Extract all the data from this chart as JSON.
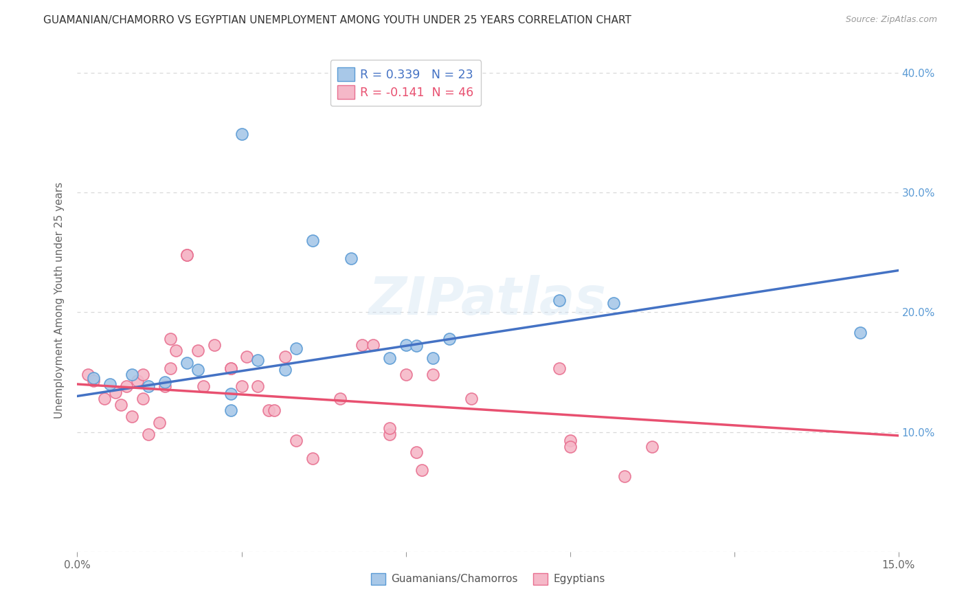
{
  "title": "GUAMANIAN/CHAMORRO VS EGYPTIAN UNEMPLOYMENT AMONG YOUTH UNDER 25 YEARS CORRELATION CHART",
  "source": "Source: ZipAtlas.com",
  "ylabel": "Unemployment Among Youth under 25 years",
  "xlim": [
    0.0,
    0.15
  ],
  "ylim": [
    0.0,
    0.42
  ],
  "xtick_positions": [
    0.0,
    0.03,
    0.06,
    0.09,
    0.12,
    0.15
  ],
  "xtick_labels": [
    "0.0%",
    "",
    "",
    "",
    "",
    "15.0%"
  ],
  "yticks_right": [
    0.1,
    0.2,
    0.3,
    0.4
  ],
  "ytick_labels_right": [
    "10.0%",
    "20.0%",
    "30.0%",
    "40.0%"
  ],
  "legend_blue_label": "Guamanians/Chamorros",
  "legend_pink_label": "Egyptians",
  "blue_fill_color": "#a8c8e8",
  "blue_edge_color": "#5b9bd5",
  "pink_fill_color": "#f5b8c8",
  "pink_edge_color": "#e87090",
  "blue_line_color": "#4472c4",
  "pink_line_color": "#e85070",
  "blue_scatter": [
    [
      0.003,
      0.145
    ],
    [
      0.006,
      0.14
    ],
    [
      0.01,
      0.148
    ],
    [
      0.013,
      0.138
    ],
    [
      0.016,
      0.142
    ],
    [
      0.02,
      0.158
    ],
    [
      0.022,
      0.152
    ],
    [
      0.028,
      0.132
    ],
    [
      0.028,
      0.118
    ],
    [
      0.03,
      0.349
    ],
    [
      0.033,
      0.16
    ],
    [
      0.038,
      0.152
    ],
    [
      0.04,
      0.17
    ],
    [
      0.043,
      0.26
    ],
    [
      0.05,
      0.245
    ],
    [
      0.057,
      0.162
    ],
    [
      0.06,
      0.173
    ],
    [
      0.062,
      0.172
    ],
    [
      0.065,
      0.162
    ],
    [
      0.068,
      0.178
    ],
    [
      0.088,
      0.21
    ],
    [
      0.098,
      0.208
    ],
    [
      0.143,
      0.183
    ]
  ],
  "pink_scatter": [
    [
      0.002,
      0.148
    ],
    [
      0.003,
      0.143
    ],
    [
      0.005,
      0.128
    ],
    [
      0.007,
      0.133
    ],
    [
      0.008,
      0.123
    ],
    [
      0.009,
      0.138
    ],
    [
      0.01,
      0.113
    ],
    [
      0.011,
      0.143
    ],
    [
      0.012,
      0.148
    ],
    [
      0.012,
      0.128
    ],
    [
      0.013,
      0.098
    ],
    [
      0.015,
      0.108
    ],
    [
      0.016,
      0.138
    ],
    [
      0.017,
      0.153
    ],
    [
      0.017,
      0.178
    ],
    [
      0.018,
      0.168
    ],
    [
      0.02,
      0.248
    ],
    [
      0.02,
      0.248
    ],
    [
      0.022,
      0.168
    ],
    [
      0.023,
      0.138
    ],
    [
      0.025,
      0.173
    ],
    [
      0.028,
      0.153
    ],
    [
      0.028,
      0.153
    ],
    [
      0.03,
      0.138
    ],
    [
      0.031,
      0.163
    ],
    [
      0.033,
      0.138
    ],
    [
      0.035,
      0.118
    ],
    [
      0.036,
      0.118
    ],
    [
      0.038,
      0.163
    ],
    [
      0.04,
      0.093
    ],
    [
      0.043,
      0.078
    ],
    [
      0.048,
      0.128
    ],
    [
      0.052,
      0.173
    ],
    [
      0.054,
      0.173
    ],
    [
      0.057,
      0.098
    ],
    [
      0.057,
      0.103
    ],
    [
      0.06,
      0.148
    ],
    [
      0.062,
      0.083
    ],
    [
      0.063,
      0.068
    ],
    [
      0.065,
      0.148
    ],
    [
      0.072,
      0.128
    ],
    [
      0.088,
      0.153
    ],
    [
      0.09,
      0.093
    ],
    [
      0.09,
      0.088
    ],
    [
      0.1,
      0.063
    ],
    [
      0.105,
      0.088
    ]
  ],
  "blue_trendline": [
    [
      0.0,
      0.13
    ],
    [
      0.15,
      0.235
    ]
  ],
  "pink_trendline": [
    [
      0.0,
      0.14
    ],
    [
      0.15,
      0.097
    ]
  ],
  "watermark": "ZIPatlas",
  "background_color": "#ffffff",
  "grid_color": "#d8d8d8",
  "legend_r_blue": "R = 0.339",
  "legend_n_blue": "N = 23",
  "legend_r_pink": "R = -0.141",
  "legend_n_pink": "N = 46"
}
